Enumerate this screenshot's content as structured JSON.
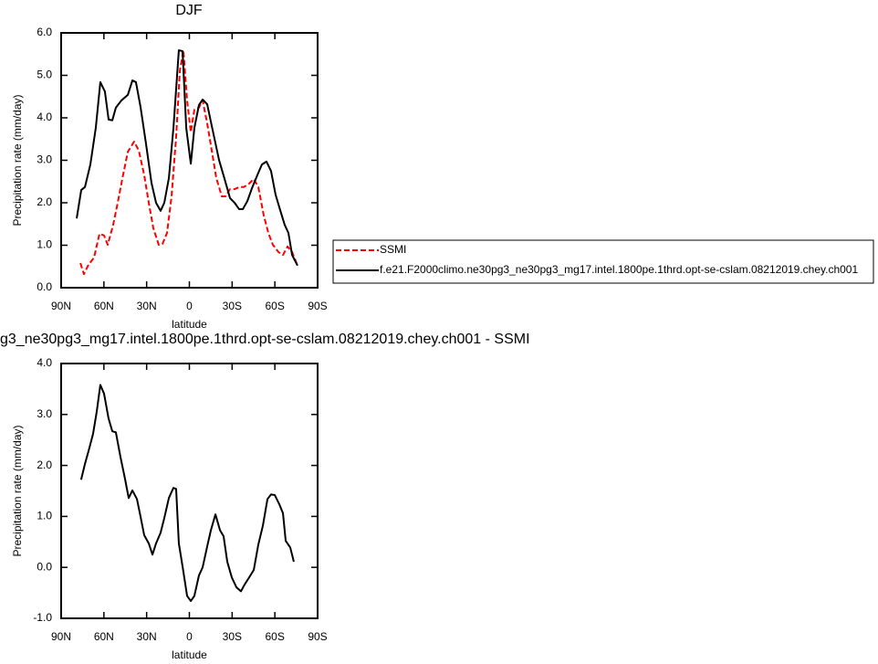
{
  "chart_data": [
    {
      "type": "line",
      "title": "DJF",
      "x_label": "latitude",
      "y_label": "Precipitation rate (mm/day)",
      "xlim": [
        90,
        -90
      ],
      "ylim": [
        0,
        6
      ],
      "xticks": [
        {
          "value": 90,
          "label": "90N"
        },
        {
          "value": 60,
          "label": "60N"
        },
        {
          "value": 30,
          "label": "30N"
        },
        0,
        {
          "value": -30,
          "label": "30S"
        },
        {
          "value": -60,
          "label": "60S"
        },
        {
          "value": -90,
          "label": "90S"
        }
      ],
      "yticks": [
        {
          "value": 0,
          "label": "0.0"
        },
        {
          "value": 1,
          "label": "1.0"
        },
        {
          "value": 2,
          "label": "2.0"
        },
        {
          "value": 3,
          "label": "3.0"
        },
        {
          "value": 4,
          "label": "4.0"
        },
        {
          "value": 5,
          "label": "5.0"
        },
        {
          "value": 6,
          "label": "6.0"
        }
      ],
      "legend": "outside-right",
      "series": [
        {
          "name": "SSMI",
          "color": "#ff0000",
          "dashed": true,
          "x": [
            76.5,
            74.0,
            70.8,
            66.9,
            63.1,
            59.9,
            57.3,
            53.5,
            50.3,
            47.1,
            43.2,
            38.8,
            35.5,
            31.7,
            28.5,
            25.3,
            21.5,
            18.9,
            15.7,
            12.5,
            9.3,
            6.7,
            4.2,
            1.6,
            -1.0,
            -3.5,
            -6.7,
            -9.3,
            -12.5,
            -15.7,
            -18.9,
            -22.8,
            -25.3,
            -28.5,
            -31.7,
            -34.9,
            -38.1,
            -41.3,
            -45.2,
            -48.4,
            -52.2,
            -55.4,
            -58.6,
            -62.5,
            -65.7,
            -68.9,
            -72.1,
            -75.9
          ],
          "values": [
            0.58,
            0.32,
            0.54,
            0.71,
            1.27,
            1.23,
            1.01,
            1.48,
            2.0,
            2.56,
            3.2,
            3.44,
            3.23,
            2.65,
            2.0,
            1.4,
            1.01,
            1.03,
            1.29,
            2.15,
            3.55,
            5.1,
            5.59,
            4.41,
            3.66,
            4.19,
            4.24,
            4.41,
            3.87,
            3.23,
            2.58,
            2.15,
            2.15,
            2.32,
            2.32,
            2.37,
            2.37,
            2.43,
            2.56,
            2.37,
            1.7,
            1.29,
            1.01,
            0.84,
            0.77,
            0.97,
            0.84,
            0.52
          ]
        },
        {
          "name": "f.e21.F2000climo.ne30pg3_ne30pg3_mg17.intel.1800pe.1thrd.opt-se-cslam.08212019.chey.ch001",
          "color": "#000000",
          "dashed": false,
          "x": [
            79.1,
            75.9,
            73.3,
            69.5,
            65.7,
            62.5,
            59.3,
            56.7,
            54.1,
            51.6,
            47.7,
            43.2,
            40.0,
            37.5,
            34.3,
            30.4,
            26.6,
            23.4,
            20.2,
            17.6,
            14.4,
            11.2,
            7.4,
            4.8,
            2.2,
            -1.0,
            -3.5,
            -6.7,
            -9.3,
            -12.5,
            -15.7,
            -20.8,
            -24.7,
            -28.5,
            -31.7,
            -34.9,
            -37.5,
            -40.7,
            -43.9,
            -47.7,
            -50.9,
            -54.1,
            -57.3,
            -60.5,
            -63.7,
            -66.9,
            -69.5,
            -72.1,
            -75.9
          ],
          "values": [
            1.63,
            2.3,
            2.37,
            2.9,
            3.76,
            4.84,
            4.62,
            3.96,
            3.94,
            4.24,
            4.41,
            4.54,
            4.88,
            4.84,
            4.26,
            3.38,
            2.47,
            2.0,
            1.81,
            2.0,
            2.58,
            3.76,
            5.59,
            5.57,
            3.76,
            2.92,
            3.76,
            4.3,
            4.43,
            4.32,
            3.81,
            3.01,
            2.56,
            2.11,
            2.0,
            1.85,
            1.85,
            2.04,
            2.34,
            2.65,
            2.9,
            2.97,
            2.75,
            2.19,
            1.83,
            1.48,
            1.29,
            0.77,
            0.52
          ]
        }
      ]
    },
    {
      "type": "line",
      "title": "g3_ne30pg3_mg17.intel.1800pe.1thrd.opt-se-cslam.08212019.chey.ch001 - SSMI",
      "x_label": "latitude",
      "y_label": "Precipitation rate (mm/day)",
      "xlim": [
        90,
        -90
      ],
      "ylim": [
        -1,
        4
      ],
      "xticks": [
        {
          "value": 90,
          "label": "90N"
        },
        {
          "value": 60,
          "label": "60N"
        },
        {
          "value": 30,
          "label": "30N"
        },
        0,
        {
          "value": -30,
          "label": "30S"
        },
        {
          "value": -60,
          "label": "60S"
        },
        {
          "value": -90,
          "label": "90S"
        }
      ],
      "yticks": [
        {
          "value": -1,
          "label": "-1.0"
        },
        {
          "value": 0,
          "label": "0.0"
        },
        {
          "value": 1,
          "label": "1.0"
        },
        {
          "value": 2,
          "label": "2.0"
        },
        {
          "value": 3,
          "label": "3.0"
        },
        {
          "value": 4,
          "label": "4.0"
        }
      ],
      "series": [
        {
          "color": "#000000",
          "dashed": false,
          "x": [
            76.0,
            73.3,
            70.8,
            67.6,
            65.0,
            62.5,
            59.9,
            56.7,
            54.1,
            51.6,
            48.4,
            45.2,
            42.6,
            40.0,
            36.8,
            34.3,
            31.7,
            28.5,
            25.9,
            23.4,
            20.2,
            17.6,
            14.4,
            11.2,
            9.3,
            7.4,
            4.8,
            1.6,
            -1.0,
            -3.5,
            -6.7,
            -9.3,
            -12.5,
            -15.1,
            -18.3,
            -21.5,
            -24.0,
            -26.6,
            -29.8,
            -33.0,
            -36.2,
            -38.7,
            -41.9,
            -45.2,
            -48.4,
            -51.6,
            -54.8,
            -57.3,
            -59.9,
            -63.1,
            -65.7,
            -67.6,
            -70.8,
            -73.3
          ],
          "values": [
            1.72,
            2.03,
            2.28,
            2.62,
            3.06,
            3.58,
            3.41,
            2.92,
            2.67,
            2.65,
            2.17,
            1.74,
            1.36,
            1.51,
            1.34,
            1.0,
            0.63,
            0.47,
            0.25,
            0.47,
            0.68,
            0.97,
            1.36,
            1.56,
            1.54,
            0.47,
            0.02,
            -0.56,
            -0.66,
            -0.56,
            -0.16,
            0.0,
            0.41,
            0.73,
            1.04,
            0.73,
            0.61,
            0.11,
            -0.2,
            -0.39,
            -0.47,
            -0.34,
            -0.2,
            -0.05,
            0.45,
            0.82,
            1.34,
            1.43,
            1.42,
            1.24,
            1.06,
            0.52,
            0.39,
            0.11
          ]
        }
      ]
    }
  ]
}
